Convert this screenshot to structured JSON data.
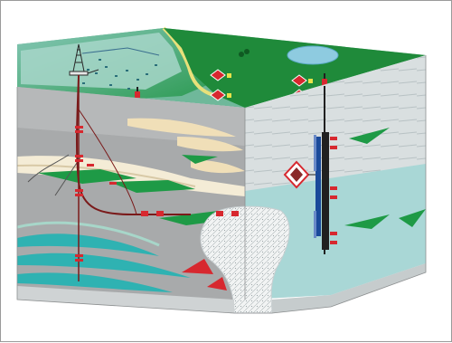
{
  "diagram": {
    "colors": {
      "land_green": "#1f8a3a",
      "dark_green": "#157a30",
      "sea_blue_green": "#a7d6c9",
      "front_gray": "#a8aaab",
      "right_face": "#d9dfe0",
      "right_lower": "#a9d7d6",
      "lake_blue": "#8ecbe0",
      "sand_tan": "#f0dfb8",
      "reservoir_green": "#1e9a46",
      "aquifer_teal": "#2fb2b2",
      "salt_dome_white": "#f2f4f4",
      "well_red": "#d7282f",
      "well_black": "#202020"
    },
    "icons": [
      "drilling-rig-icon",
      "facility-building-icon",
      "well-marker-icon",
      "tool-diamond-icon",
      "tree-icon"
    ]
  }
}
